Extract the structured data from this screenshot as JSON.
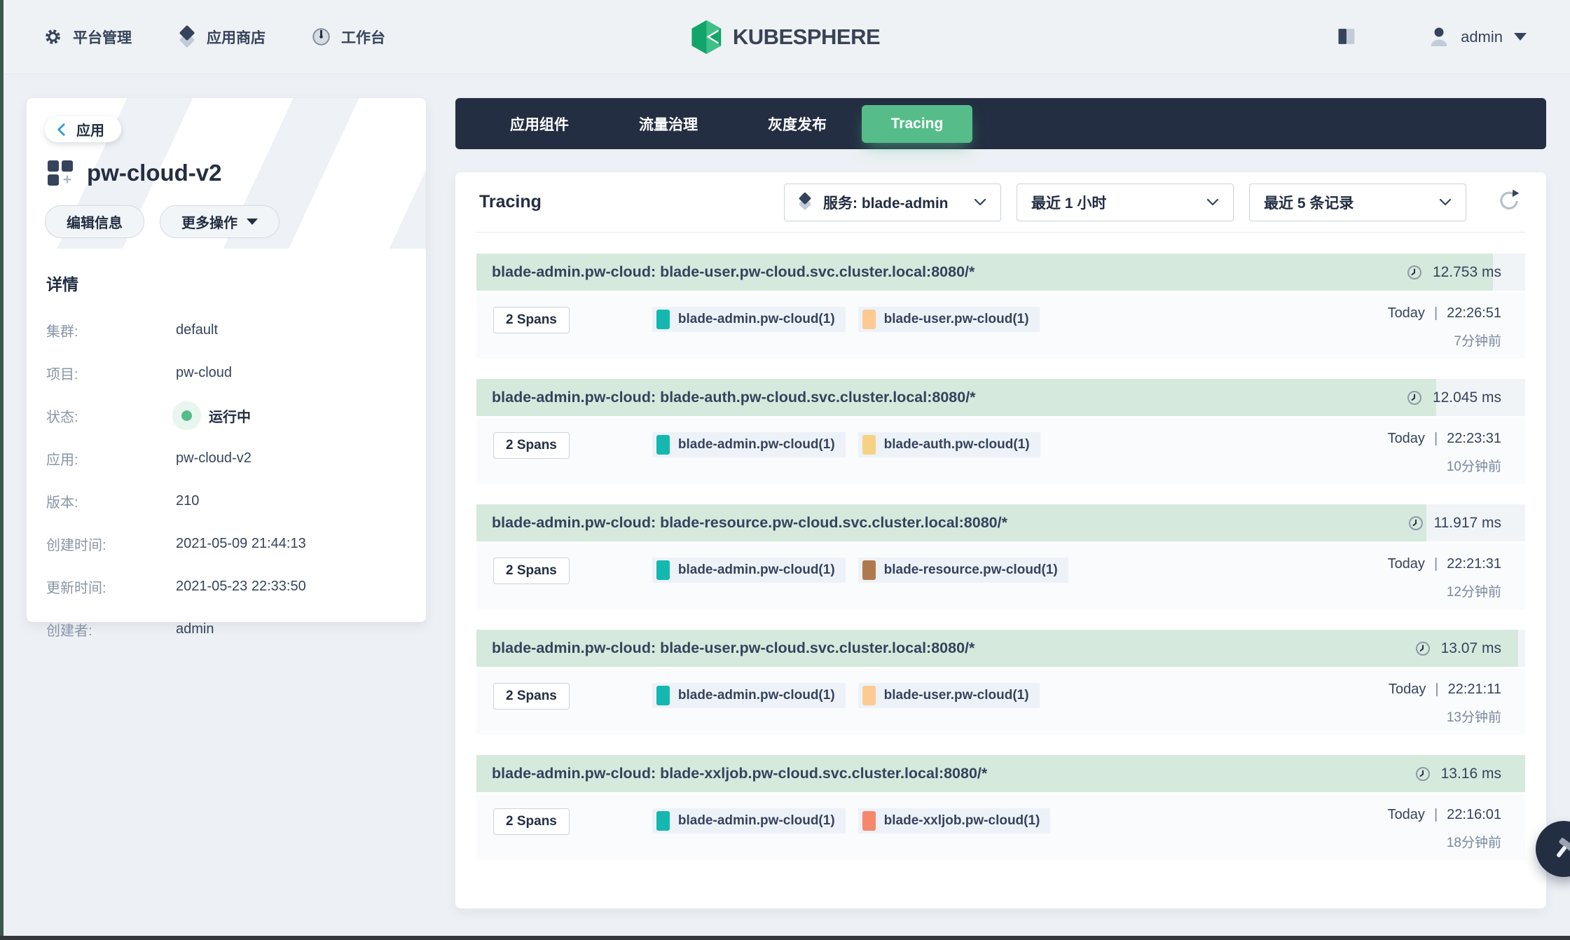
{
  "topbar": {
    "nav_platform": "平台管理",
    "nav_appstore": "应用商店",
    "nav_workbench": "工作台",
    "logo_text": "KUBESPHERE",
    "username": "admin"
  },
  "sidebar": {
    "back_label": "应用",
    "app_title": "pw-cloud-v2",
    "edit_button": "编辑信息",
    "more_button": "更多操作",
    "details_title": "详情",
    "details": [
      {
        "label": "集群:",
        "value": "default"
      },
      {
        "label": "项目:",
        "value": "pw-cloud"
      },
      {
        "label": "状态:",
        "value": "运行中"
      },
      {
        "label": "应用:",
        "value": "pw-cloud-v2"
      },
      {
        "label": "版本:",
        "value": "210"
      },
      {
        "label": "创建时间:",
        "value": "2021-05-09 21:44:13"
      },
      {
        "label": "更新时间:",
        "value": "2021-05-23 22:33:50"
      },
      {
        "label": "创建者:",
        "value": "admin"
      }
    ]
  },
  "tabs": {
    "components": "应用组件",
    "traffic": "流量治理",
    "gray": "灰度发布",
    "tracing": "Tracing"
  },
  "tracing": {
    "title": "Tracing",
    "service_filter": "服务: blade-admin",
    "time_filter": "最近 1 小时",
    "limit_filter": "最近 5 条记录",
    "time_separator": "|",
    "max_duration_ms": 13.16,
    "traces": [
      {
        "title": "blade-admin.pw-cloud: blade-user.pw-cloud.svc.cluster.local:8080/*",
        "duration_label": "12.753 ms",
        "duration_ms": 12.753,
        "spans": "2 Spans",
        "date": "Today",
        "time": "22:26:51",
        "ago": "7分钟前",
        "tags": [
          {
            "label": "blade-admin.pw-cloud(1)",
            "color": "#15b8b0"
          },
          {
            "label": "blade-user.pw-cloud(1)",
            "color": "#fcca92"
          }
        ]
      },
      {
        "title": "blade-admin.pw-cloud: blade-auth.pw-cloud.svc.cluster.local:8080/*",
        "duration_label": "12.045 ms",
        "duration_ms": 12.045,
        "spans": "2 Spans",
        "date": "Today",
        "time": "22:23:31",
        "ago": "10分钟前",
        "tags": [
          {
            "label": "blade-admin.pw-cloud(1)",
            "color": "#15b8b0"
          },
          {
            "label": "blade-auth.pw-cloud(1)",
            "color": "#f6d384"
          }
        ]
      },
      {
        "title": "blade-admin.pw-cloud: blade-resource.pw-cloud.svc.cluster.local:8080/*",
        "duration_label": "11.917 ms",
        "duration_ms": 11.917,
        "spans": "2 Spans",
        "date": "Today",
        "time": "22:21:31",
        "ago": "12分钟前",
        "tags": [
          {
            "label": "blade-admin.pw-cloud(1)",
            "color": "#15b8b0"
          },
          {
            "label": "blade-resource.pw-cloud(1)",
            "color": "#b0794d"
          }
        ]
      },
      {
        "title": "blade-admin.pw-cloud: blade-user.pw-cloud.svc.cluster.local:8080/*",
        "duration_label": "13.07 ms",
        "duration_ms": 13.07,
        "spans": "2 Spans",
        "date": "Today",
        "time": "22:21:11",
        "ago": "13分钟前",
        "tags": [
          {
            "label": "blade-admin.pw-cloud(1)",
            "color": "#15b8b0"
          },
          {
            "label": "blade-user.pw-cloud(1)",
            "color": "#fcca92"
          }
        ]
      },
      {
        "title": "blade-admin.pw-cloud: blade-xxljob.pw-cloud.svc.cluster.local:8080/*",
        "duration_label": "13.16 ms",
        "duration_ms": 13.16,
        "spans": "2 Spans",
        "date": "Today",
        "time": "22:16:01",
        "ago": "18分钟前",
        "tags": [
          {
            "label": "blade-admin.pw-cloud(1)",
            "color": "#15b8b0"
          },
          {
            "label": "blade-xxljob.pw-cloud(1)",
            "color": "#f5876b"
          }
        ]
      }
    ]
  },
  "icons": {
    "gear-icon": "⚙",
    "appstore-icon": "◆",
    "workbench-icon": "◔",
    "docs-icon": "▤",
    "avatar-icon": "👤",
    "caret-down-icon": "▼",
    "chevron-left-icon": "‹",
    "chevron-down-icon": "⌄",
    "refresh-icon": "↻",
    "clock-icon": "🕓",
    "hammer-icon": "🔨",
    "app-icon": "▦",
    "status-dot": "●"
  },
  "colors": {
    "accent_green": "#55bc8a",
    "navy": "#242e42",
    "bar_fill": "#d6e9dd",
    "status_green": "#55bc8a"
  }
}
